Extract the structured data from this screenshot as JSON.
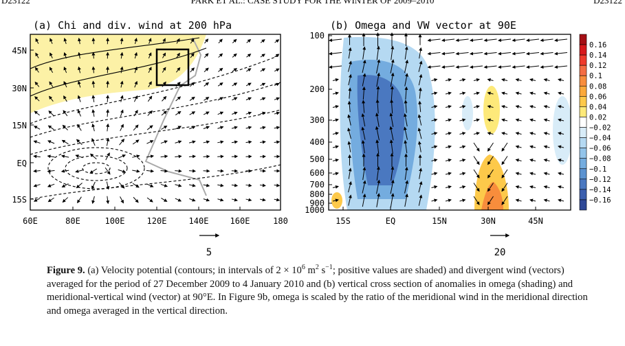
{
  "header": {
    "left": "D23122",
    "center": "PARK ET AL.: CASE STUDY FOR THE WINTER OF 2009–2010",
    "right": "D23122"
  },
  "panels": [
    {
      "title": "(a) Chi and div. wind at 200 hPa",
      "y_labels": [
        "45N",
        "30N",
        "15N",
        "EQ",
        "15S"
      ],
      "x_labels": [
        "60E",
        "80E",
        "100E",
        "120E",
        "140E",
        "160E",
        "180"
      ],
      "ref_vector": "5"
    },
    {
      "title": "(b) Omega and VW vector at 90E",
      "y_labels": [
        "100",
        "200",
        "300",
        "400",
        "500",
        "600",
        "700",
        "800",
        "900",
        "1000"
      ],
      "x_labels": [
        "15S",
        "EQ",
        "15N",
        "30N",
        "45N"
      ],
      "ref_vector": "20",
      "colorbar": {
        "labels": [
          "0.16",
          "0.14",
          "0.12",
          "0.1",
          "0.08",
          "0.06",
          "0.04",
          "0.02",
          "−0.02",
          "−0.04",
          "−0.06",
          "−0.08",
          "−0.1",
          "−0.12",
          "−0.14",
          "−0.16"
        ],
        "colors": [
          "#a50f15",
          "#d7191c",
          "#ee3b2c",
          "#f46d43",
          "#f88d3c",
          "#fba93a",
          "#fdc94a",
          "#fde97a",
          "#ffffff",
          "#d8ecf8",
          "#b5d9f2",
          "#93c4ea",
          "#74acdf",
          "#5b92d0",
          "#4a78c0",
          "#3c5fae",
          "#2e4897"
        ]
      }
    }
  ],
  "caption": {
    "runs": [
      {
        "text": "Figure 9.",
        "format": "bold"
      },
      {
        "text": "  (a) Velocity potential (contours; in intervals of 2 × 10"
      },
      {
        "text": "6",
        "format": "sup"
      },
      {
        "text": " m"
      },
      {
        "text": "2",
        "format": "sup"
      },
      {
        "text": " s"
      },
      {
        "text": "−1",
        "format": "sup"
      },
      {
        "text": "; positive values are shaded) and divergent wind (vectors) averaged for the period of 27 December 2009 to 4 January 2010 and (b) vertical cross section of anomalies in omega (shading) and meridional-vertical wind (vector) at 90°E. In Figure 9b, omega is scaled by the ratio of the meridional wind in the meridional direction and omega averaged in the vertical direction."
      }
    ]
  }
}
